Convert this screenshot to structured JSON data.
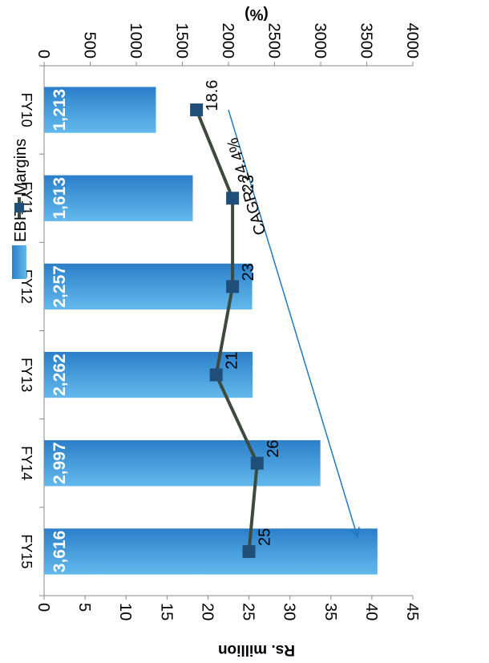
{
  "chart_data": {
    "type": "bar",
    "rotation": "90deg clockwise",
    "categories": [
      "FY10",
      "FY11",
      "FY12",
      "FY13",
      "FY14",
      "FY15"
    ],
    "series": [
      {
        "name": "EBIT",
        "kind": "bar",
        "axis": "primary",
        "color": "#4aa3df",
        "values": [
          1213,
          1613,
          2257,
          2262,
          2997,
          3616
        ],
        "labels": [
          "1,213",
          "1,613",
          "2,257",
          "2,262",
          "2,997",
          "3,616"
        ]
      },
      {
        "name": "Margins",
        "kind": "line",
        "axis": "secondary",
        "color": "#3d4a3d",
        "marker_color": "#1f4e79",
        "values": [
          18.6,
          23,
          23,
          21,
          26,
          25
        ],
        "labels": [
          "18.6",
          "23",
          "23",
          "21",
          "26",
          "25"
        ]
      }
    ],
    "primary_axis": {
      "label": "Rs. million",
      "range": [
        0,
        4000
      ],
      "ticks": [
        "0",
        "500",
        "1000",
        "1500",
        "2000",
        "2500",
        "3000",
        "3500",
        "4000"
      ]
    },
    "secondary_axis": {
      "label": "(%)",
      "range": [
        0,
        45
      ],
      "ticks": [
        "0",
        "5",
        "10",
        "15",
        "20",
        "25",
        "30",
        "35",
        "40",
        "45"
      ]
    },
    "annotation": {
      "text": "CAGR: 24.4%",
      "arrow_color": "#1f7ac0"
    },
    "legend_position": "top-right",
    "grid": false
  }
}
